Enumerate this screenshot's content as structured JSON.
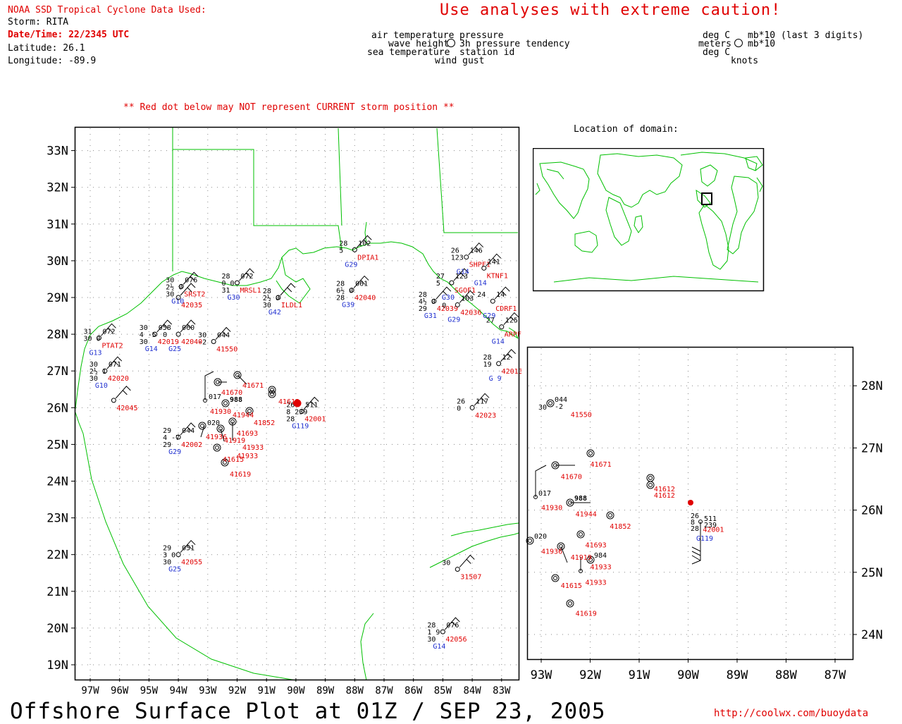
{
  "header": {
    "data_used": "NOAA SSD Tropical Cyclone Data Used:",
    "storm": "Storm: RITA",
    "datetime": "Date/Time: 22/2345 UTC",
    "latitude": "Latitude: 26.1",
    "longitude": "Longitude: -89.9",
    "caution": "Use analyses with extreme caution!",
    "red_dot_note": "** Red dot below may NOT represent CURRENT storm position **"
  },
  "legend": {
    "left_labels": [
      "air temperature",
      "wave height",
      "sea temperature",
      "wind gust"
    ],
    "right_labels": [
      "pressure",
      "3h pressure tendency",
      "station id"
    ],
    "units_left": [
      "deg C",
      "meters",
      "deg C"
    ],
    "units_right": [
      "mb*10 (last 3 digits)",
      "mb*10",
      "knots"
    ]
  },
  "location_title": "Location of domain:",
  "footer": {
    "title": "Offshore Surface Plot at 01Z / SEP 23, 2005",
    "url": "http://coolwx.com/buoydata"
  },
  "colors": {
    "land": "#00c000",
    "red": "#e00000",
    "blue": "#2030d0",
    "grid": "#888888"
  },
  "main_map": {
    "lat_labels": [
      "19N",
      "20N",
      "21N",
      "22N",
      "23N",
      "24N",
      "25N",
      "26N",
      "27N",
      "28N",
      "29N",
      "30N",
      "31N",
      "32N",
      "33N"
    ],
    "lon_labels": [
      "97W",
      "96W",
      "95W",
      "94W",
      "93W",
      "92W",
      "91W",
      "90W",
      "89W",
      "88W",
      "87W",
      "86W",
      "85W",
      "84W",
      "83W"
    ],
    "storm_label": "41612",
    "stations": [
      {
        "lon": -96.2,
        "lat": 26.2,
        "id": "42045",
        "idc": "red",
        "top": "",
        "mid": "",
        "bot": ""
      },
      {
        "lon": -96.5,
        "lat": 27.0,
        "id": "42020",
        "idc": "red",
        "top": "071",
        "mid": "2½  1",
        "bot": "30",
        "ul": "30",
        "sid": "G10"
      },
      {
        "lon": -96.7,
        "lat": 27.9,
        "id": "PTAT2",
        "idc": "red",
        "top": "072",
        "mid": "30  0",
        "bot": "",
        "ul": "31",
        "sid": "G13"
      },
      {
        "lon": -94.8,
        "lat": 28.0,
        "id": "42019",
        "idc": "red",
        "top": "058",
        "mid": "4  -5",
        "bot": "30",
        "ul": "30",
        "sid": "G14"
      },
      {
        "lon": -94.0,
        "lat": 28.0,
        "id": "42040",
        "idc": "red",
        "top": "060",
        "mid": "0",
        "bot": "",
        "sid": "G25"
      },
      {
        "lon": -93.9,
        "lat": 29.3,
        "id": "SRST2",
        "idc": "red",
        "top": "076",
        "mid": "2½  0",
        "bot": "30",
        "ul": "30",
        "sid": "G10"
      },
      {
        "lon": -94.0,
        "lat": 29.0,
        "id": "42035",
        "idc": "red",
        "top": "",
        "mid": "",
        "bot": ""
      },
      {
        "lon": -92.8,
        "lat": 27.8,
        "id": "41550",
        "idc": "red",
        "top": "044",
        "mid": "-2",
        "bot": "",
        "ul": "30"
      },
      {
        "lon": -92.0,
        "lat": 29.4,
        "id": "MRSL1",
        "idc": "red",
        "top": "072",
        "mid": "0  0",
        "bot": "31",
        "ul": "28",
        "sid": "G30"
      },
      {
        "lon": -90.6,
        "lat": 29.0,
        "id": "ILDL1",
        "idc": "red",
        "top": "",
        "mid": "2½  0",
        "bot": "30",
        "ul": "28",
        "sid": "G42"
      },
      {
        "lon": -88.1,
        "lat": 29.2,
        "id": "42040",
        "idc": "red",
        "top": "061",
        "mid": "6½  0",
        "bot": "28",
        "ul": "28",
        "sid": "G39"
      },
      {
        "lon": -88.0,
        "lat": 30.3,
        "id": "DPIA1",
        "idc": "red",
        "top": "102",
        "mid": "5",
        "bot": "",
        "ul": "28",
        "sid": "G29"
      },
      {
        "lon": -85.3,
        "lat": 28.9,
        "id": "42039",
        "idc": "red",
        "top": "",
        "mid": "4½  0",
        "bot": "29",
        "ul": "28",
        "sid": "G31"
      },
      {
        "lon": -84.7,
        "lat": 29.4,
        "id": "SGOF1",
        "idc": "red",
        "top": "123",
        "mid": "5",
        "bot": "",
        "ul": "27",
        "sid": "G30"
      },
      {
        "lon": -84.5,
        "lat": 28.8,
        "id": "42036",
        "idc": "red",
        "top": "103",
        "mid": "0",
        "bot": "",
        "sid": "G29"
      },
      {
        "lon": -84.2,
        "lat": 30.1,
        "id": "SHPF1",
        "idc": "red",
        "top": "146",
        "mid": "123",
        "bot": "",
        "ul": "26",
        "sid": "G14"
      },
      {
        "lon": -83.6,
        "lat": 29.8,
        "id": "KTNF1",
        "idc": "red",
        "top": "141",
        "mid": "",
        "bot": "",
        "sid": "G14"
      },
      {
        "lon": -83.3,
        "lat": 28.9,
        "id": "CDRF1",
        "idc": "red",
        "top": "14",
        "mid": "",
        "bot": "",
        "ul": "24",
        "sid": "G29"
      },
      {
        "lon": -83.0,
        "lat": 28.2,
        "id": "ARPF1",
        "idc": "red",
        "top": "125",
        "mid": "",
        "bot": "",
        "ul": "27",
        "sid": "G14"
      },
      {
        "lon": -83.1,
        "lat": 27.2,
        "id": "42013",
        "idc": "red",
        "top": "12",
        "mid": "19",
        "bot": "",
        "ul": "28",
        "sid": "G 9"
      },
      {
        "lon": -84.0,
        "lat": 26.0,
        "id": "42023",
        "idc": "red",
        "top": "117",
        "mid": "0",
        "bot": "",
        "ul": "26"
      },
      {
        "lon": -89.8,
        "lat": 25.9,
        "id": "42001",
        "idc": "red",
        "top": "511",
        "mid": "8  239",
        "bot": "28",
        "ul": "26",
        "sid": "G119"
      },
      {
        "lon": -94.0,
        "lat": 25.2,
        "id": "42002",
        "idc": "red",
        "top": "044",
        "mid": "4  -7",
        "bot": "29",
        "ul": "29",
        "sid": "G29"
      },
      {
        "lon": -94.0,
        "lat": 22.0,
        "id": "42055",
        "idc": "red",
        "top": "051",
        "mid": "3  0",
        "bot": "30",
        "ul": "29",
        "sid": "G25"
      },
      {
        "lon": -84.5,
        "lat": 21.6,
        "id": "31507",
        "idc": "red",
        "top": "",
        "mid": "",
        "bot": "",
        "ul": "30"
      },
      {
        "lon": -85.0,
        "lat": 19.9,
        "id": "42056",
        "idc": "red",
        "top": "076",
        "mid": "1  9",
        "bot": "30",
        "ul": "28",
        "sid": "G14"
      }
    ],
    "cluster_labels": [
      "41671",
      "41670",
      "41930",
      "41944",
      "41852",
      "41936",
      "41693",
      "41919",
      "41933",
      "41933",
      "41615",
      "41619",
      "017",
      "988",
      "020"
    ]
  },
  "inset_map": {
    "lat_labels": [
      "24N",
      "25N",
      "26N",
      "27N",
      "28N"
    ],
    "lon_labels": [
      "93W",
      "92W",
      "91W",
      "90W",
      "89W",
      "88W",
      "87W"
    ],
    "labels": [
      {
        "t": "41550",
        "lon": -92.4,
        "lat": 27.5
      },
      {
        "t": "41671",
        "lon": -92.0,
        "lat": 26.7
      },
      {
        "t": "41670",
        "lon": -92.6,
        "lat": 26.5
      },
      {
        "t": "41612",
        "lon": -90.7,
        "lat": 26.3
      },
      {
        "t": "41612",
        "lon": -90.7,
        "lat": 26.2
      },
      {
        "t": "41930",
        "lon": -93.0,
        "lat": 26.0
      },
      {
        "t": "41944",
        "lon": -92.3,
        "lat": 25.9
      },
      {
        "t": "41852",
        "lon": -91.6,
        "lat": 25.7
      },
      {
        "t": "42001",
        "lon": -89.7,
        "lat": 25.65
      },
      {
        "t": "41693",
        "lon": -92.1,
        "lat": 25.4
      },
      {
        "t": "41936",
        "lon": -93.0,
        "lat": 25.3
      },
      {
        "t": "41919",
        "lon": -92.4,
        "lat": 25.2
      },
      {
        "t": "41933",
        "lon": -92.0,
        "lat": 25.05
      },
      {
        "t": "41933",
        "lon": -92.1,
        "lat": 24.8
      },
      {
        "t": "41615",
        "lon": -92.6,
        "lat": 24.75
      },
      {
        "t": "41619",
        "lon": -92.3,
        "lat": 24.3
      }
    ]
  }
}
